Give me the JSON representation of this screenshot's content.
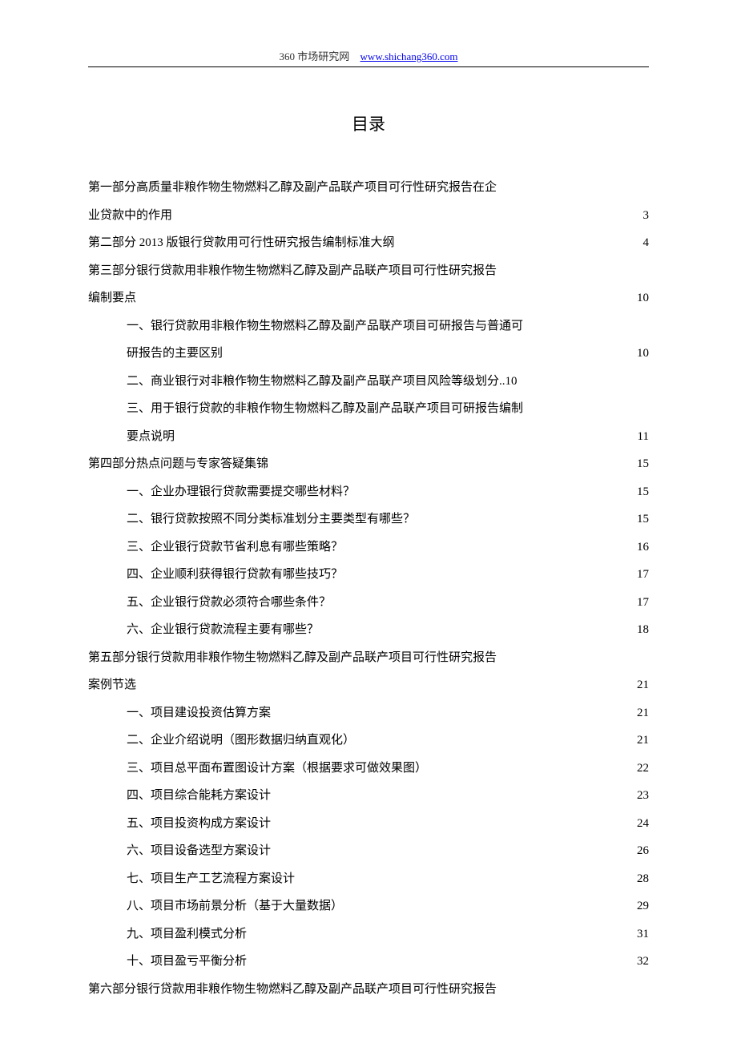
{
  "header": {
    "site_name": "360 市场研究网",
    "site_url": "www.shichang360.com"
  },
  "title": "目录",
  "toc": [
    {
      "text": "第一部分高质量非粮作物生物燃料乙醇及副产品联产项目可行性研究报告在企",
      "page": null,
      "indent": false,
      "continues": true
    },
    {
      "text": "业贷款中的作用",
      "page": "3",
      "indent": false,
      "continues": false
    },
    {
      "text": "第二部分 2013 版银行贷款用可行性研究报告编制标准大纲",
      "page": "4",
      "indent": false,
      "continues": false
    },
    {
      "text": "第三部分银行贷款用非粮作物生物燃料乙醇及副产品联产项目可行性研究报告",
      "page": null,
      "indent": false,
      "continues": true
    },
    {
      "text": "编制要点",
      "page": "10",
      "indent": false,
      "continues": false
    },
    {
      "text": "一、银行贷款用非粮作物生物燃料乙醇及副产品联产项目可研报告与普通可",
      "page": null,
      "indent": true,
      "continues": true
    },
    {
      "text": "研报告的主要区别",
      "page": "10",
      "indent": true,
      "continues": false
    },
    {
      "text": "二、商业银行对非粮作物生物燃料乙醇及副产品联产项目风险等级划分..10",
      "page": null,
      "indent": true,
      "continues": false,
      "inline_page": true
    },
    {
      "text": "三、用于银行贷款的非粮作物生物燃料乙醇及副产品联产项目可研报告编制",
      "page": null,
      "indent": true,
      "continues": true
    },
    {
      "text": "要点说明",
      "page": "11",
      "indent": true,
      "continues": false
    },
    {
      "text": "第四部分热点问题与专家答疑集锦",
      "page": "15",
      "indent": false,
      "continues": false
    },
    {
      "text": "一、企业办理银行贷款需要提交哪些材料？",
      "page": "15",
      "indent": true,
      "continues": false
    },
    {
      "text": "二、银行贷款按照不同分类标准划分主要类型有哪些？",
      "page": "15",
      "indent": true,
      "continues": false
    },
    {
      "text": "三、企业银行贷款节省利息有哪些策略？",
      "page": "16",
      "indent": true,
      "continues": false
    },
    {
      "text": "四、企业顺利获得银行贷款有哪些技巧？",
      "page": "17",
      "indent": true,
      "continues": false
    },
    {
      "text": "五、企业银行贷款必须符合哪些条件？",
      "page": "17",
      "indent": true,
      "continues": false
    },
    {
      "text": "六、企业银行贷款流程主要有哪些？",
      "page": "18",
      "indent": true,
      "continues": false
    },
    {
      "text": "第五部分银行贷款用非粮作物生物燃料乙醇及副产品联产项目可行性研究报告",
      "page": null,
      "indent": false,
      "continues": true
    },
    {
      "text": "案例节选",
      "page": "21",
      "indent": false,
      "continues": false
    },
    {
      "text": "一、项目建设投资估算方案",
      "page": "21",
      "indent": true,
      "continues": false
    },
    {
      "text": "二、企业介绍说明（图形数据归纳直观化）",
      "page": "21",
      "indent": true,
      "continues": false
    },
    {
      "text": "三、项目总平面布置图设计方案（根据要求可做效果图）",
      "page": "22",
      "indent": true,
      "continues": false
    },
    {
      "text": "四、项目综合能耗方案设计",
      "page": "23",
      "indent": true,
      "continues": false
    },
    {
      "text": "五、项目投资构成方案设计",
      "page": "24",
      "indent": true,
      "continues": false
    },
    {
      "text": "六、项目设备选型方案设计",
      "page": "26",
      "indent": true,
      "continues": false
    },
    {
      "text": "七、项目生产工艺流程方案设计",
      "page": "28",
      "indent": true,
      "continues": false
    },
    {
      "text": "八、项目市场前景分析（基于大量数据）",
      "page": "29",
      "indent": true,
      "continues": false
    },
    {
      "text": "九、项目盈利模式分析",
      "page": "31",
      "indent": true,
      "continues": false
    },
    {
      "text": "十、项目盈亏平衡分析",
      "page": "32",
      "indent": true,
      "continues": false
    },
    {
      "text": "第六部分银行贷款用非粮作物生物燃料乙醇及副产品联产项目可行性研究报告",
      "page": null,
      "indent": false,
      "continues": true
    }
  ]
}
